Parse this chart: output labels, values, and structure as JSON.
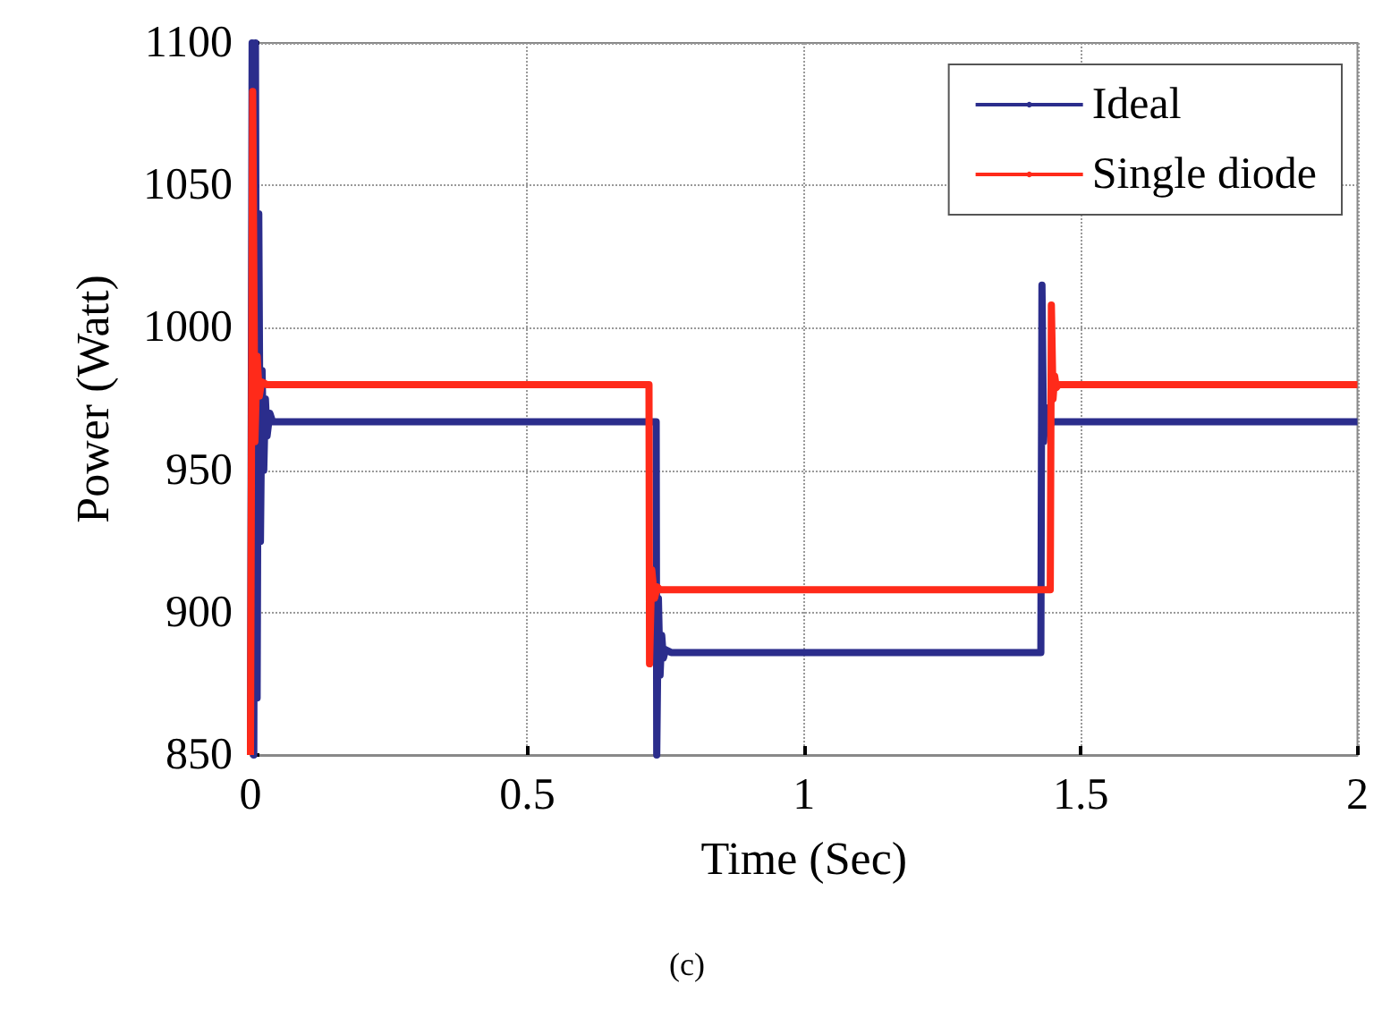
{
  "chart_data": {
    "type": "line",
    "xlabel": "Time (Sec)",
    "ylabel": "Power (Watt)",
    "annotations": [
      "(c)"
    ],
    "xlim": [
      0,
      2
    ],
    "xticks": [
      0,
      0.5,
      1,
      1.5,
      2
    ],
    "ylim": [
      850,
      1100
    ],
    "yticks": [
      850,
      900,
      950,
      1000,
      1050,
      1100
    ],
    "grid": true,
    "legend": "top right",
    "marker": "none",
    "line_style": "solid",
    "series": [
      {
        "name": "Ideal",
        "color": "#2b2d8c",
        "x": [
          0,
          0.003,
          0.006,
          0.009,
          0.012,
          0.015,
          0.018,
          0.021,
          0.024,
          0.027,
          0.03,
          0.035,
          0.04,
          0.05,
          0.733,
          0.734,
          0.737,
          0.74,
          0.743,
          0.746,
          0.75,
          0.76,
          1.428,
          1.43,
          1.433,
          1.436,
          1.44,
          1.45,
          2
        ],
        "values": [
          850,
          1100,
          850,
          1100,
          870,
          1040,
          925,
          985,
          950,
          975,
          962,
          970,
          967,
          967,
          967,
          850,
          905,
          878,
          892,
          884,
          887,
          886,
          886,
          1015,
          960,
          972,
          965,
          967,
          967
        ]
      },
      {
        "name": "Single diode",
        "color": "#ff2a1a",
        "x": [
          0,
          0.004,
          0.008,
          0.012,
          0.016,
          0.02,
          0.03,
          0.72,
          0.721,
          0.725,
          0.73,
          0.735,
          0.74,
          1.445,
          1.447,
          1.45,
          1.453,
          1.456,
          1.46,
          2
        ],
        "values": [
          850,
          1083,
          960,
          990,
          976,
          981,
          980,
          980,
          882,
          915,
          905,
          909,
          908,
          908,
          1008,
          975,
          983,
          979,
          980,
          980
        ]
      }
    ]
  }
}
